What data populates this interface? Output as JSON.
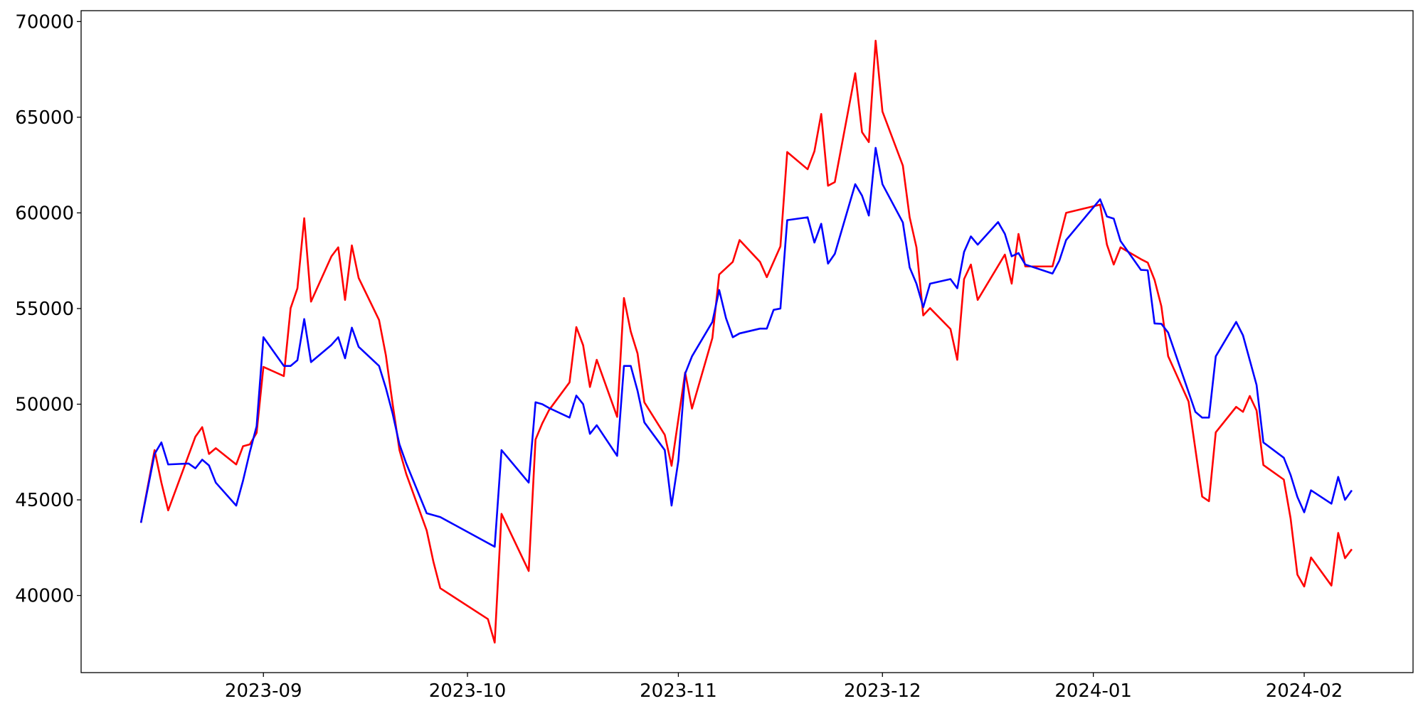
{
  "chart_data": {
    "type": "line",
    "xlim": [
      19574.2,
      19770
    ],
    "ylim": [
      35970,
      70570
    ],
    "xticks": [
      {
        "value": 19601,
        "label": "2023-09"
      },
      {
        "value": 19631,
        "label": "2023-10"
      },
      {
        "value": 19662,
        "label": "2023-11"
      },
      {
        "value": 19692,
        "label": "2023-12"
      },
      {
        "value": 19723,
        "label": "2024-01"
      },
      {
        "value": 19754,
        "label": "2024-02"
      }
    ],
    "yticks": [
      40000,
      45000,
      50000,
      55000,
      60000,
      65000,
      70000
    ],
    "grid": false,
    "series": [
      {
        "color": "#ff0000",
        "x": [
          19583,
          19585,
          19586,
          19587,
          19591,
          19592,
          19593,
          19594,
          19597,
          19598,
          19599,
          19600,
          19601,
          19604,
          19605,
          19606,
          19607,
          19608,
          19611,
          19612,
          19613,
          19614,
          19615,
          19618,
          19619,
          19620,
          19621,
          19622,
          19625,
          19626,
          19627,
          19634,
          19635,
          19636,
          19640,
          19641,
          19642,
          19643,
          19646,
          19647,
          19648,
          19649,
          19650,
          19653,
          19654,
          19655,
          19656,
          19657,
          19660,
          19661,
          19663,
          19664,
          19667,
          19668,
          19670,
          19671,
          19674,
          19675,
          19677,
          19678,
          19681,
          19682,
          19683,
          19684,
          19685,
          19688,
          19689,
          19690,
          19691,
          19692,
          19695,
          19696,
          19697,
          19698,
          19699,
          19702,
          19703,
          19704,
          19705,
          19706,
          19710,
          19711,
          19712,
          19713,
          19717,
          19719,
          19724,
          19725,
          19726,
          19727,
          19730,
          19731,
          19732,
          19733,
          19734,
          19737,
          19739,
          19740,
          19741,
          19744,
          19745,
          19746,
          19747,
          19748,
          19751,
          19752,
          19753,
          19754,
          19755,
          19758,
          19759,
          19760,
          19761
        ],
        "values": [
          43800,
          47600,
          45900,
          44450,
          48300,
          48800,
          47400,
          47700,
          46850,
          47800,
          47900,
          48500,
          51950,
          51470,
          55020,
          56060,
          59720,
          55360,
          57730,
          58200,
          55450,
          58300,
          56600,
          54400,
          52560,
          50000,
          47600,
          46350,
          43400,
          41750,
          40380,
          38770,
          37540,
          44270,
          41280,
          48150,
          49000,
          49700,
          51140,
          54030,
          53080,
          50900,
          52320,
          49340,
          55550,
          53800,
          52650,
          50100,
          48400,
          46780,
          51660,
          49770,
          53460,
          56780,
          57440,
          58580,
          57440,
          56640,
          58250,
          63180,
          62280,
          63220,
          65170,
          61420,
          61610,
          67300,
          64220,
          63700,
          69000,
          65300,
          62470,
          59770,
          58200,
          54640,
          55020,
          53930,
          52320,
          56540,
          57300,
          55450,
          57820,
          56300,
          58900,
          57200,
          57200,
          60000,
          60430,
          58340,
          57300,
          58200,
          57580,
          57400,
          56500,
          55120,
          52510,
          50140,
          45170,
          44930,
          48530,
          49860,
          49600,
          50430,
          49670,
          46820,
          46060,
          44030,
          41090,
          40470,
          41990,
          40520,
          43270,
          41950,
          42420
        ]
      },
      {
        "color": "#0000ff",
        "x": [
          19583,
          19585,
          19586,
          19587,
          19590,
          19591,
          19592,
          19593,
          19594,
          19597,
          19598,
          19599,
          19600,
          19601,
          19604,
          19605,
          19606,
          19607,
          19608,
          19611,
          19612,
          19613,
          19614,
          19615,
          19618,
          19619,
          19620,
          19621,
          19622,
          19625,
          19627,
          19635,
          19636,
          19640,
          19641,
          19642,
          19643,
          19646,
          19647,
          19648,
          19649,
          19650,
          19653,
          19654,
          19655,
          19656,
          19657,
          19660,
          19661,
          19662,
          19663,
          19664,
          19667,
          19668,
          19669,
          19670,
          19671,
          19674,
          19675,
          19676,
          19677,
          19678,
          19681,
          19682,
          19683,
          19684,
          19685,
          19688,
          19689,
          19690,
          19691,
          19692,
          19695,
          19696,
          19697,
          19698,
          19699,
          19702,
          19703,
          19704,
          19705,
          19706,
          19709,
          19710,
          19711,
          19712,
          19713,
          19717,
          19718,
          19719,
          19724,
          19725,
          19726,
          19727,
          19730,
          19731,
          19732,
          19733,
          19734,
          19738,
          19739,
          19740,
          19741,
          19744,
          19745,
          19746,
          19747,
          19748,
          19751,
          19752,
          19753,
          19754,
          19755,
          19758,
          19759,
          19760,
          19761
        ],
        "values": [
          43800,
          47400,
          48000,
          46850,
          46900,
          46650,
          47100,
          46800,
          45900,
          44700,
          46000,
          47500,
          48850,
          53500,
          52000,
          52000,
          52300,
          54450,
          52200,
          53100,
          53500,
          52400,
          54000,
          53000,
          52000,
          50850,
          49500,
          47900,
          46900,
          44300,
          44100,
          42550,
          47600,
          45900,
          50100,
          50000,
          49800,
          49300,
          50450,
          50000,
          48450,
          48900,
          47300,
          52000,
          52000,
          50700,
          49050,
          47600,
          44700,
          47050,
          51600,
          52500,
          54300,
          55970,
          54500,
          53500,
          53700,
          53950,
          53950,
          54930,
          55000,
          59620,
          59770,
          58450,
          59430,
          57350,
          57860,
          61500,
          60900,
          59860,
          63400,
          61500,
          59500,
          57150,
          56300,
          55070,
          56300,
          56540,
          56060,
          57960,
          58770,
          58340,
          59520,
          58900,
          57730,
          57900,
          57300,
          56830,
          57500,
          58580,
          60710,
          59810,
          59700,
          58530,
          57020,
          57000,
          54220,
          54200,
          53740,
          49600,
          49300,
          49300,
          52500,
          54300,
          53600,
          52300,
          51000,
          48000,
          47200,
          46300,
          45150,
          44350,
          45500,
          44800,
          46200,
          45000,
          45500
        ]
      }
    ]
  }
}
